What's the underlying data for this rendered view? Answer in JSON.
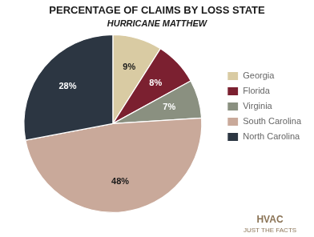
{
  "chart_data": {
    "type": "pie",
    "title": "PERCENTAGE OF CLAIMS BY LOSS STATE",
    "subtitle": "HURRICANE MATTHEW",
    "categories": [
      "Georgia",
      "Florida",
      "Virginia",
      "South Carolina",
      "North Carolina"
    ],
    "values": [
      9,
      8,
      7,
      48,
      28
    ],
    "value_labels": [
      "9%",
      "8%",
      "7%",
      "48%",
      "28%"
    ],
    "data_labels": true,
    "colors": [
      "#d9cba3",
      "#7b2030",
      "#8a9080",
      "#c9a99a",
      "#2c3642"
    ],
    "legend": "right",
    "annotations": [
      "HVAC",
      "JUST THE FACTS"
    ]
  }
}
